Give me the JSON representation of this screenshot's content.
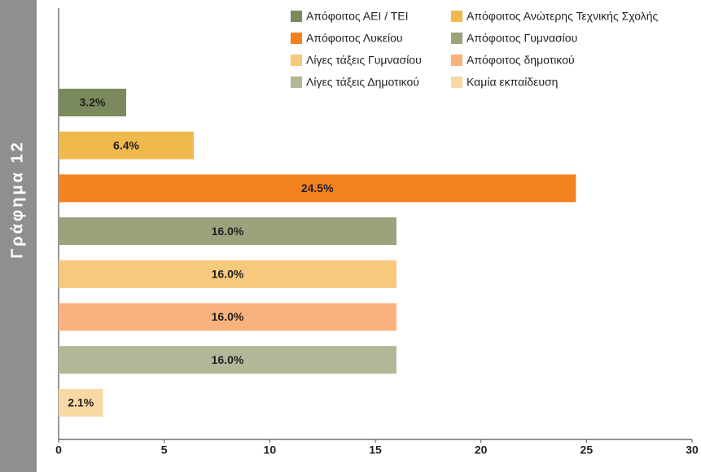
{
  "chart_data": {
    "type": "hbar",
    "title": "Γράφημα 12",
    "categories": [
      "Απόφοιτος ΑΕΙ / ΤΕΙ",
      "Απόφοιτος Ανώτερης Τεχνικής Σχολής",
      "Απόφοιτος Λυκείου",
      "Απόφοιτος Γυμνασίου",
      "Λίγες τάξεις Γυμνασίου",
      "Απόφοιτος δημοτικού",
      "Λίγες τάξεις Δημοτικού",
      "Καμία εκπαίδευση"
    ],
    "values": [
      3.2,
      6.4,
      24.5,
      16.0,
      16.0,
      16.0,
      16.0,
      2.1
    ],
    "value_labels": [
      "3.2%",
      "6.4%",
      "24.5%",
      "16.0%",
      "16.0%",
      "16.0%",
      "16.0%",
      "2.1%"
    ],
    "colors": [
      "#7b8a5c",
      "#f0b94e",
      "#f58220",
      "#9ca27c",
      "#f6c97c",
      "#f9b27e",
      "#b1b897",
      "#f8d9a3"
    ],
    "xlim": [
      0,
      30
    ],
    "xticks": [
      0,
      5,
      10,
      15,
      20,
      25,
      30
    ],
    "legend": "top-right",
    "grid": false
  }
}
